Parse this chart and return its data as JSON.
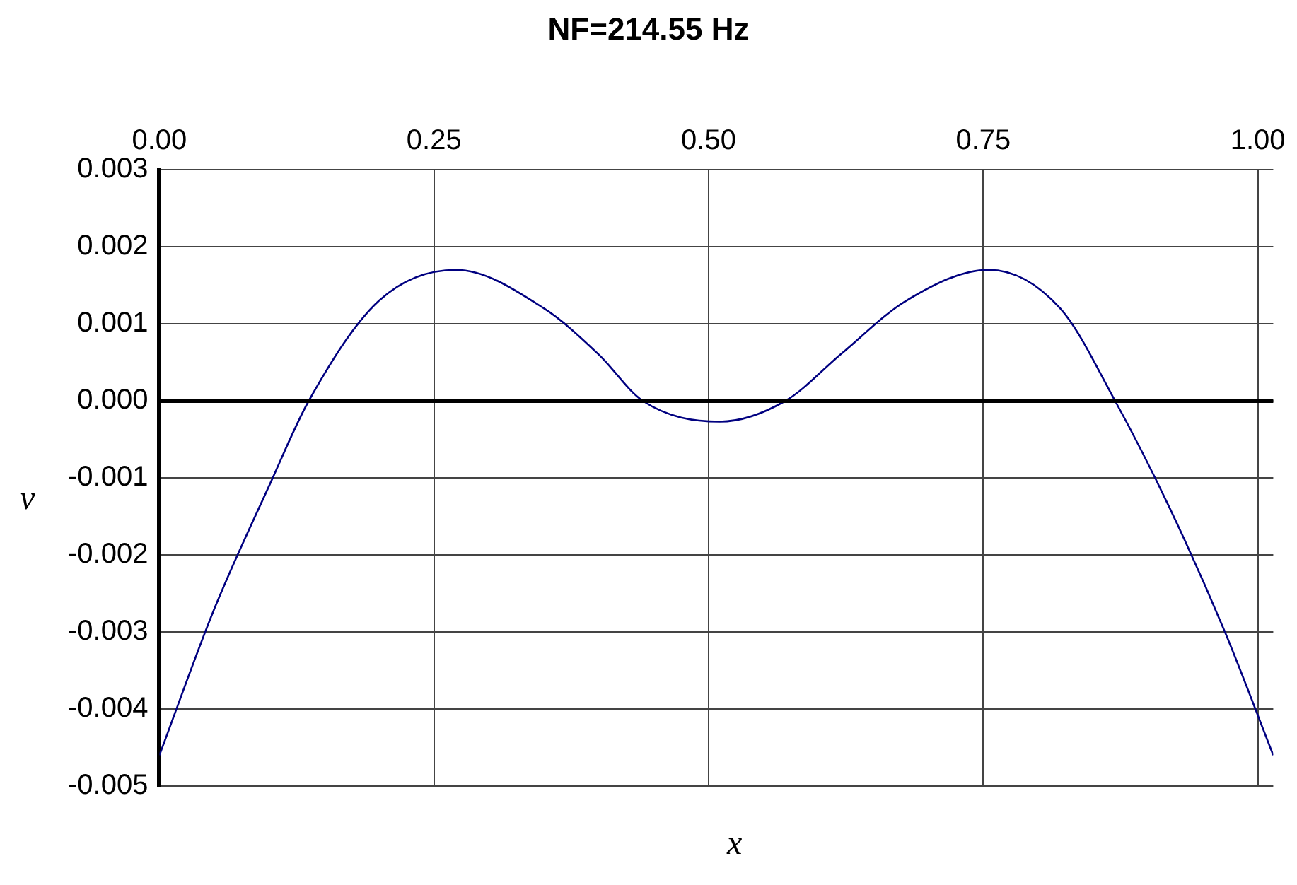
{
  "chart_data": {
    "type": "line",
    "title": "NF=214.55 Hz",
    "xlabel": "x",
    "ylabel": "v",
    "xlim": [
      0,
      1.014
    ],
    "xticks": [
      {
        "value": 0,
        "label": "0.00"
      },
      {
        "value": 0.25,
        "label": "0.25"
      },
      {
        "value": 0.5,
        "label": "0.50"
      },
      {
        "value": 0.75,
        "label": "0.75"
      },
      {
        "value": 1,
        "label": "1.00"
      }
    ],
    "ylim": [
      -0.005,
      0.003
    ],
    "yticks": [
      -0.005,
      -0.004,
      -0.003,
      -0.002,
      -0.001,
      {
        "value": 0,
        "label": "0.000"
      },
      0.001,
      0.002,
      0.003
    ],
    "grid": true,
    "marker": "none",
    "line_style": "solid",
    "ref_lines": [
      {
        "axis": "y",
        "value": 0,
        "color": "#000000"
      }
    ],
    "series": [
      {
        "color": "#000080",
        "x": [
          0,
          0.05,
          0.1,
          0.136,
          0.2,
          0.27,
          0.35,
          0.4,
          0.44,
          0.51,
          0.57,
          0.62,
          0.68,
          0.755,
          0.82,
          0.87,
          0.92,
          0.97,
          1.014
        ],
        "values": [
          -0.0046,
          -0.0027,
          -0.0011,
          0,
          0.0013,
          0.0017,
          0.0012,
          0.0006,
          0,
          -0.00027,
          0,
          0.0006,
          0.0013,
          0.0017,
          0.0012,
          0,
          -0.0014,
          -0.003,
          -0.0046
        ]
      }
    ]
  }
}
